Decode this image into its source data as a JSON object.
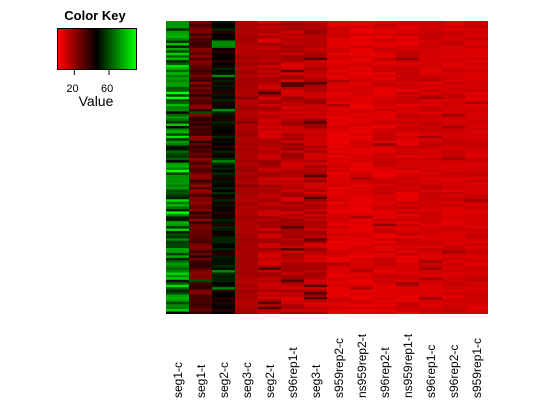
{
  "key": {
    "title": "Color Key",
    "axis_label": "Value",
    "tick_labels": [
      "20",
      "60"
    ],
    "tick_values": [
      20,
      60
    ],
    "range": [
      0,
      90
    ],
    "colors": {
      "low": "#ff0000",
      "mid": "#000000",
      "high": "#00ff00"
    }
  },
  "chart_data": {
    "type": "heatmap",
    "columns": [
      "seg1-c",
      "seg1-t",
      "seg2-c",
      "seg3-c",
      "seg2-t",
      "s96rep1-t",
      "seg3-t",
      "s959rep2-c",
      "ns959rep2-t",
      "s96rep2-t",
      "ns959rep1-t",
      "s96rep1-c",
      "s96rep2-c",
      "s959rep1-c"
    ],
    "column_mean_values": [
      65,
      28,
      45,
      15,
      12,
      12,
      12,
      6,
      6,
      7,
      7,
      8,
      8,
      8
    ],
    "column_variation": [
      20,
      10,
      8,
      2,
      6,
      6,
      6,
      3,
      3,
      4,
      4,
      3,
      3,
      3
    ],
    "row_count": 120,
    "value_range": [
      0,
      90
    ]
  }
}
